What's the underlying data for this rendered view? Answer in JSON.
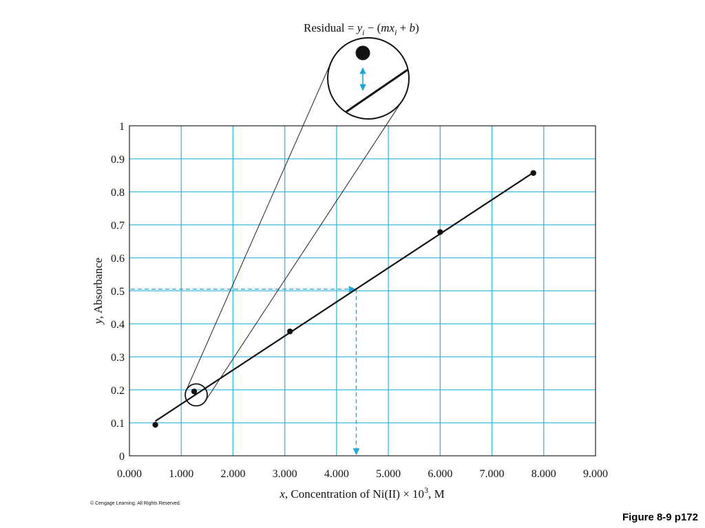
{
  "chart_data": {
    "type": "scatter",
    "xlabel_parts": {
      "var": "x",
      "text": ", Concentration of Ni(II) × 10",
      "sup": "3",
      "unit": ", M"
    },
    "ylabel_parts": {
      "var": "y",
      "text": ", Absorbance"
    },
    "xlim": [
      0,
      9
    ],
    "ylim": [
      0,
      1
    ],
    "x_ticks": [
      0,
      1,
      2,
      3,
      4,
      5,
      6,
      7,
      8,
      9
    ],
    "x_tick_labels": [
      "0.000",
      "1.000",
      "2.000",
      "3.000",
      "4.000",
      "5.000",
      "6.000",
      "7.000",
      "8.000",
      "9.000"
    ],
    "y_ticks": [
      0,
      0.1,
      0.2,
      0.3,
      0.4,
      0.5,
      0.6,
      0.7,
      0.8,
      0.9,
      1
    ],
    "y_tick_labels": [
      "0",
      "0.1",
      "0.2",
      "0.3",
      "0.4",
      "0.5",
      "0.6",
      "0.7",
      "0.8",
      "0.9",
      "1"
    ],
    "grid": true,
    "series": [
      {
        "points": [
          {
            "x": 0.5,
            "y": 0.094
          },
          {
            "x": 1.25,
            "y": 0.195
          },
          {
            "x": 3.1,
            "y": 0.377
          },
          {
            "x": 6.0,
            "y": 0.678
          },
          {
            "x": 7.8,
            "y": 0.857
          }
        ]
      }
    ],
    "fit_line": {
      "x_start": 0.5,
      "x_end": 7.8,
      "slope": 0.1032,
      "intercept": 0.0535
    },
    "unknown_readout": {
      "y": 0.505,
      "x": 4.38
    },
    "magnified_point": {
      "x": 1.25,
      "y": 0.195
    },
    "residual_annotation": {
      "prefix": "Residual = ",
      "y": "y",
      "i1": "i",
      "middle": " − (",
      "mx": "mx",
      "i2": "i",
      "suffix": " + ",
      "b": "b",
      "close": ")"
    },
    "colors": {
      "grid": "#3ab6dc",
      "dashed": "#25a8d8",
      "residual_arrow": "#1ea3d6",
      "line": "#111111",
      "points": "#111111",
      "frame": "#222222"
    }
  },
  "footer": {
    "copyright": "© Cengage Learning. All Rights Reserved.",
    "figure_label": "Figure 8-9 p172"
  }
}
